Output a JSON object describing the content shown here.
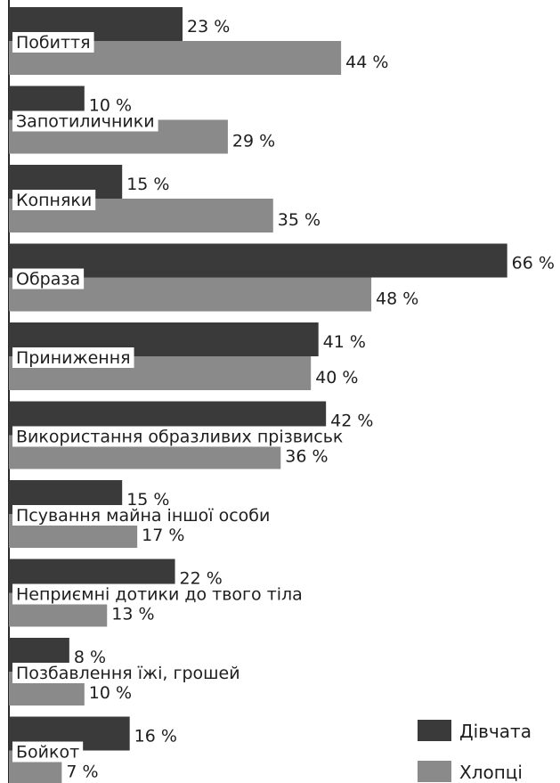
{
  "chart_data": {
    "type": "bar",
    "orientation": "horizontal",
    "categories": [
      "Побиття",
      "Запотиличники",
      "Копняки",
      "Образа",
      "Приниження",
      "Використання образливих прізвиськ",
      "Псування майна іншої особи",
      "Неприємні дотики до твого тіла",
      "Позбавлення їжі, грошей",
      "Бойкот"
    ],
    "series": [
      {
        "name": "Дівчата",
        "color": "#3a3a3a",
        "values": [
          23,
          10,
          15,
          66,
          41,
          42,
          15,
          22,
          8,
          16
        ],
        "labels": [
          "23 %",
          "10 %",
          "15 %",
          "66 %",
          "41 %",
          "42 %",
          "15 %",
          "22 %",
          "8 %",
          "16 %"
        ]
      },
      {
        "name": "Хлопці",
        "color": "#8a8a8a",
        "values": [
          44,
          29,
          35,
          48,
          40,
          36,
          17,
          13,
          10,
          7
        ],
        "labels": [
          "44 %",
          "29 %",
          "35 %",
          "48 %",
          "40 %",
          "36 %",
          "17 %",
          "13 %",
          "10 %",
          "7 %"
        ]
      }
    ],
    "xlim": [
      0,
      66
    ],
    "legend_position": "bottom-right",
    "grid": false
  }
}
